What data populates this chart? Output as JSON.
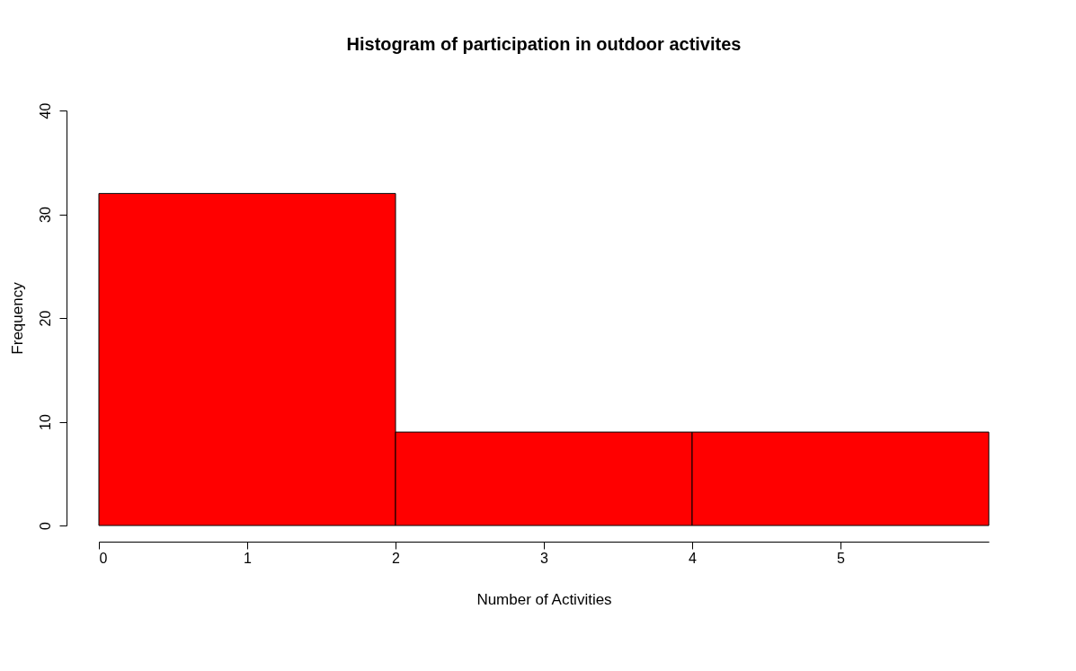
{
  "chart_data": {
    "type": "histogram",
    "title": "Histogram of participation in outdoor activites",
    "xlabel": "Number of Activities",
    "ylabel": "Frequency",
    "bins": [
      0,
      2,
      4,
      6
    ],
    "values": [
      32,
      9,
      9
    ],
    "color": "#ff0000",
    "xlim": [
      0,
      6
    ],
    "xticks": [
      0,
      1,
      2,
      3,
      4,
      5
    ],
    "ylim": [
      0,
      40
    ],
    "yticks": [
      0,
      10,
      20,
      30,
      40
    ],
    "grid": false
  }
}
